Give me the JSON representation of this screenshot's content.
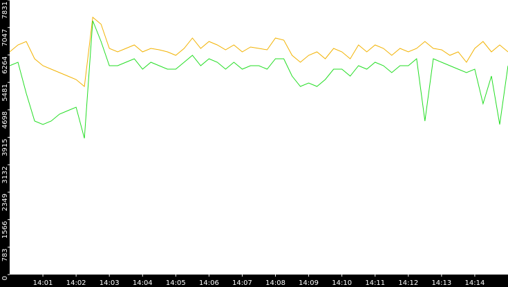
{
  "chart_data": {
    "type": "line",
    "x": [
      840,
      840.25,
      840.5,
      840.75,
      841,
      841.25,
      841.5,
      841.75,
      842,
      842.25,
      842.5,
      842.75,
      843,
      843.25,
      843.5,
      843.75,
      844,
      844.25,
      844.5,
      844.75,
      845,
      845.25,
      845.5,
      845.75,
      846,
      846.25,
      846.5,
      846.75,
      847,
      847.25,
      847.5,
      847.75,
      848,
      848.25,
      848.5,
      848.75,
      849,
      849.25,
      849.5,
      849.75,
      850,
      850.25,
      850.5,
      850.75,
      851,
      851.25,
      851.5,
      851.75,
      852,
      852.25,
      852.5,
      852.75,
      853,
      853.25,
      853.5,
      853.75,
      854,
      854.25,
      854.5,
      854.75,
      855
    ],
    "series": [
      {
        "color": "#f2b200",
        "values": [
          6351,
          6549,
          6647,
          6154,
          5957,
          5858,
          5760,
          5661,
          5562,
          5365,
          7338,
          7140,
          6450,
          6351,
          6450,
          6549,
          6351,
          6450,
          6411,
          6351,
          6253,
          6450,
          6746,
          6450,
          6647,
          6549,
          6411,
          6549,
          6351,
          6490,
          6450,
          6411,
          6746,
          6687,
          6253,
          6056,
          6253,
          6351,
          6154,
          6450,
          6351,
          6154,
          6549,
          6351,
          6549,
          6450,
          6253,
          6450,
          6351,
          6450,
          6647,
          6450,
          6411,
          6253,
          6351,
          6056,
          6450,
          6647,
          6351,
          6549,
          6351
        ]
      },
      {
        "color": "#22dd22",
        "values": [
          5957,
          6056,
          5168,
          4379,
          4280,
          4379,
          4576,
          4675,
          4773,
          3886,
          7239,
          6647,
          5957,
          5957,
          6056,
          6154,
          5858,
          6056,
          5957,
          5858,
          5858,
          6056,
          6253,
          5957,
          6154,
          6056,
          5858,
          6056,
          5858,
          5957,
          5957,
          5858,
          6154,
          6154,
          5661,
          5365,
          5464,
          5365,
          5562,
          5858,
          5858,
          5661,
          5957,
          5858,
          6056,
          5957,
          5760,
          5957,
          5957,
          6154,
          4379,
          6154,
          6056,
          5957,
          5858,
          5760,
          5858,
          4872,
          5661,
          4280,
          5957
        ]
      }
    ],
    "xlim": [
      840,
      855
    ],
    "xticks": [
      {
        "value": 841,
        "label": "14:01"
      },
      {
        "value": 842,
        "label": "14:02"
      },
      {
        "value": 843,
        "label": "14:03"
      },
      {
        "value": 844,
        "label": "14:04"
      },
      {
        "value": 845,
        "label": "14:05"
      },
      {
        "value": 846,
        "label": "14:06"
      },
      {
        "value": 847,
        "label": "14:07"
      },
      {
        "value": 848,
        "label": "14:08"
      },
      {
        "value": 849,
        "label": "14:09"
      },
      {
        "value": 850,
        "label": "14:10"
      },
      {
        "value": 851,
        "label": "14:11"
      },
      {
        "value": 852,
        "label": "14:12"
      },
      {
        "value": 853,
        "label": "14:13"
      },
      {
        "value": 854,
        "label": "14:14"
      }
    ],
    "ylim": [
      0,
      7831
    ],
    "yticks": [
      0,
      783,
      1566,
      2349,
      3132,
      3915,
      4698,
      5481,
      6264,
      7047,
      7831
    ]
  }
}
